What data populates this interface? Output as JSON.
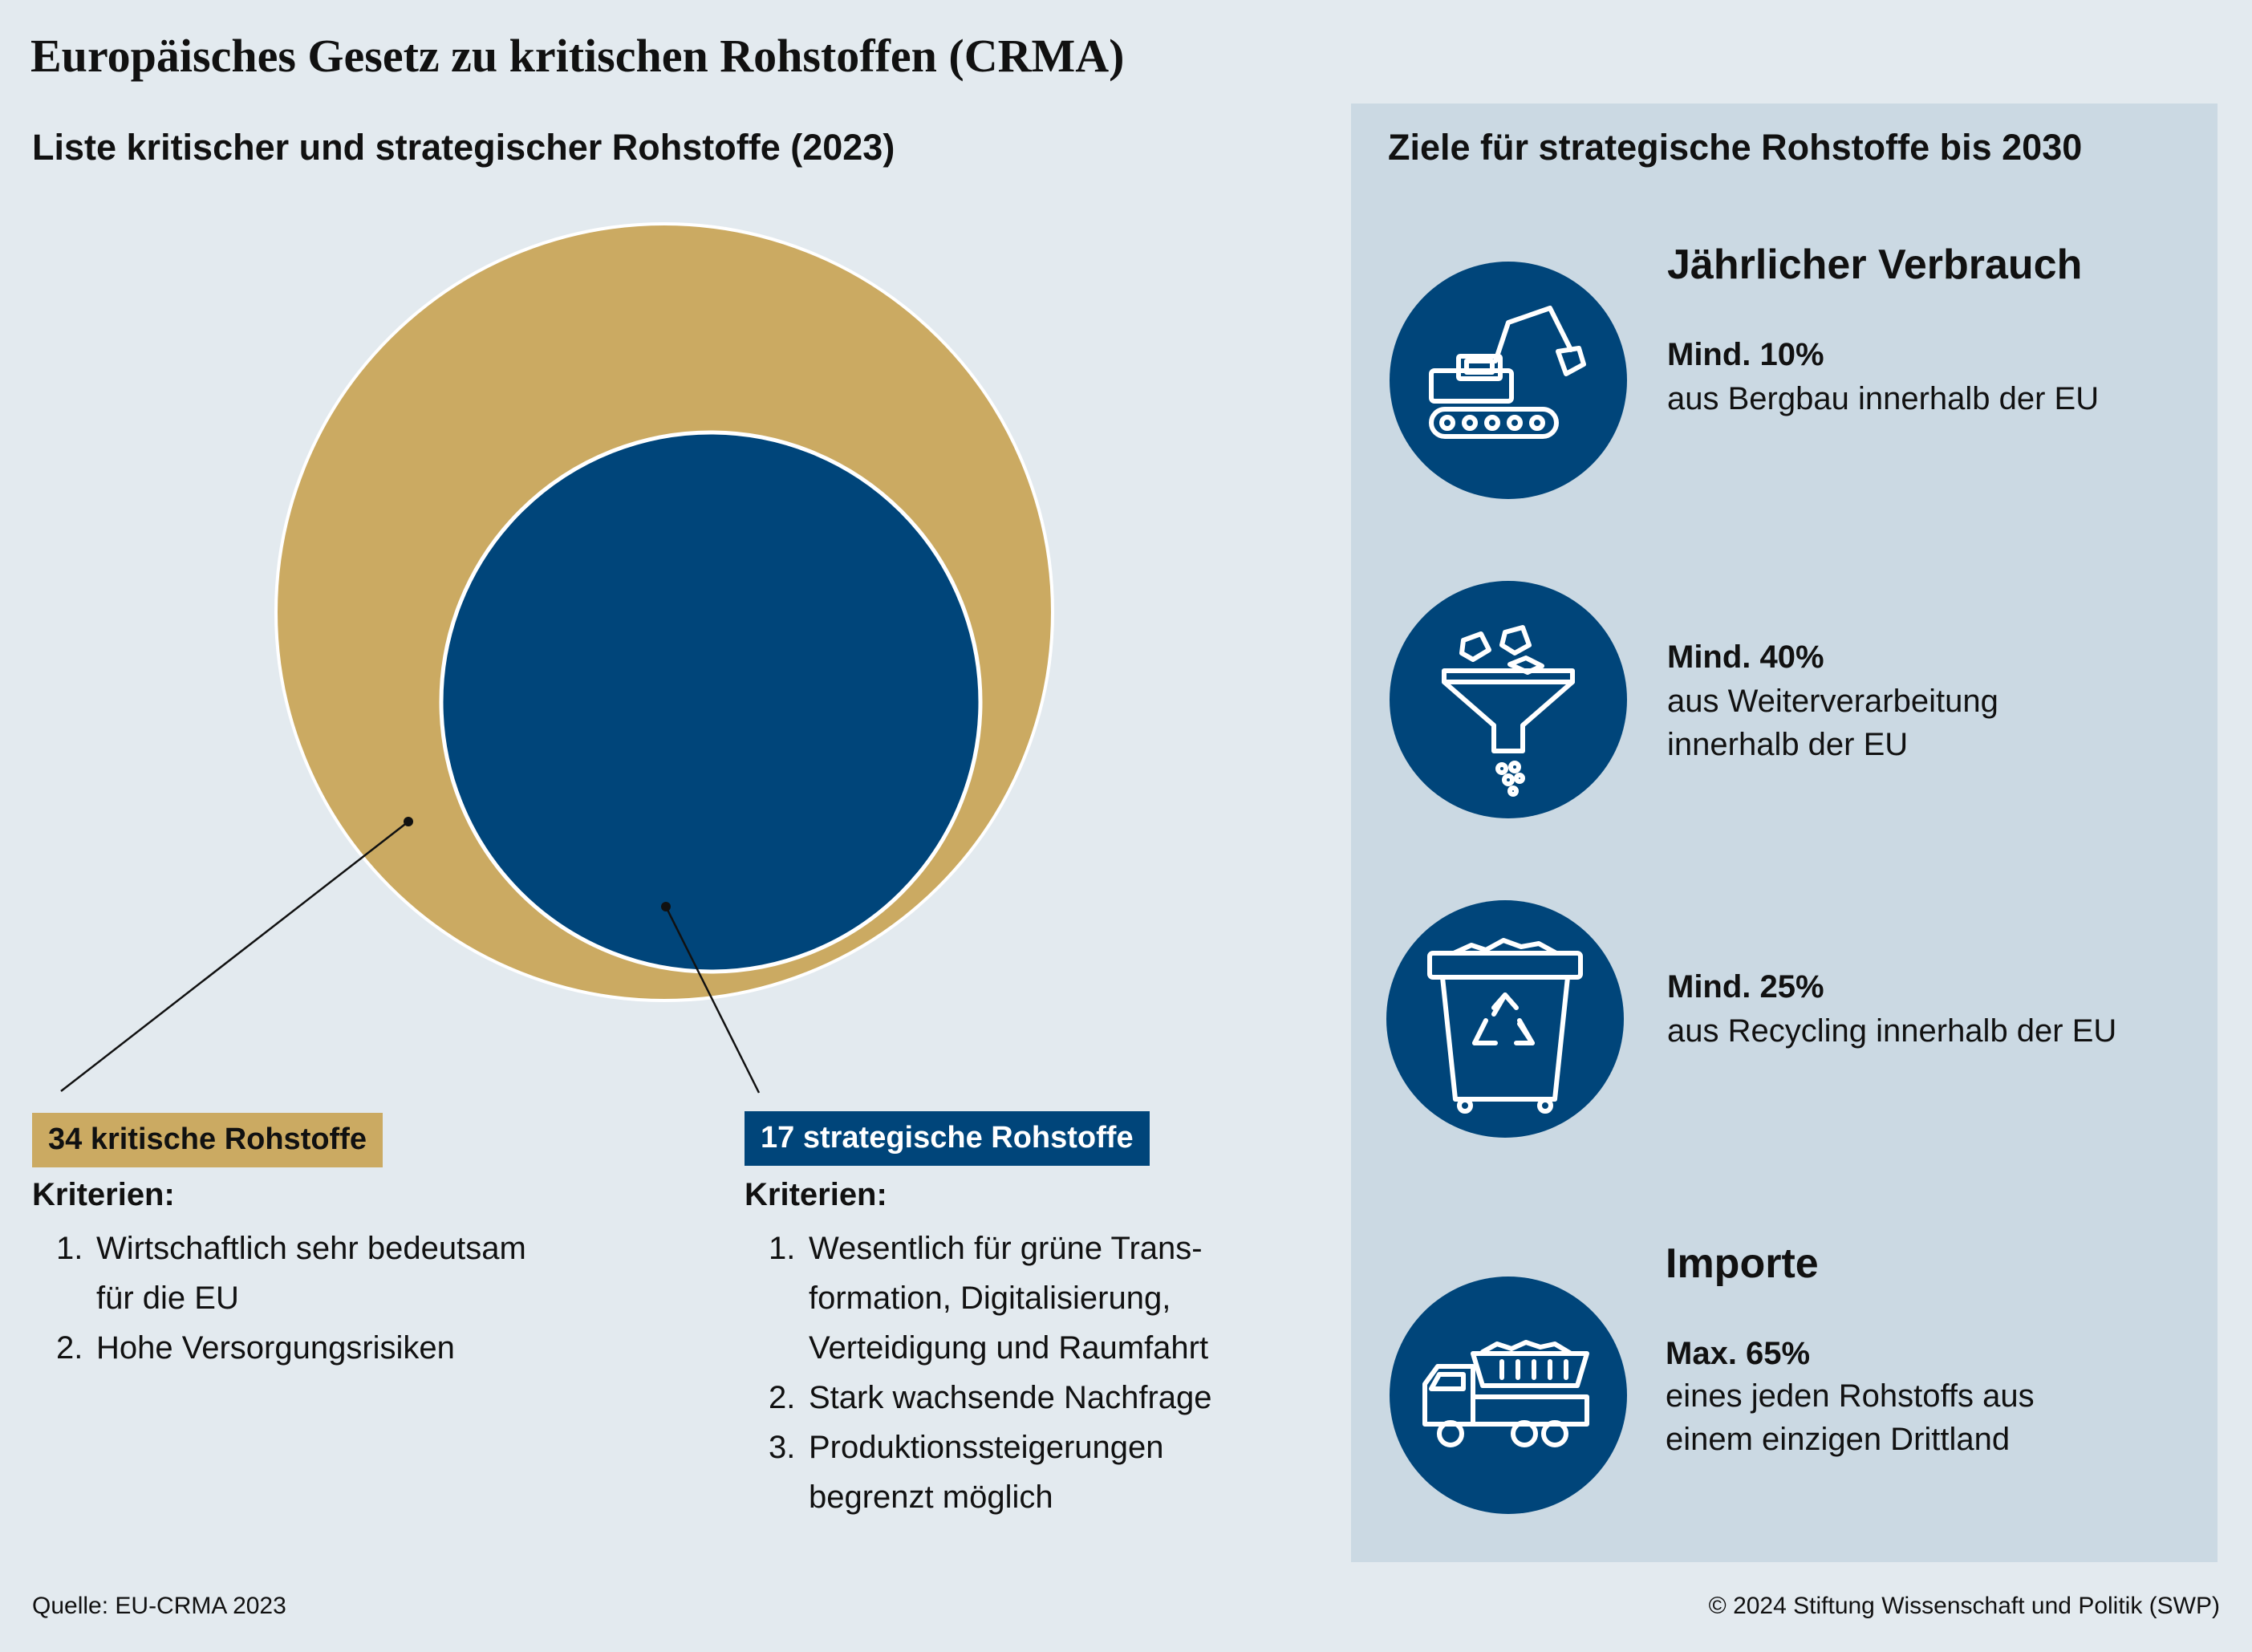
{
  "title": "Europäisches Gesetz zu kritischen Rohstoffen (CRMA)",
  "left": {
    "heading": "Liste kritischer und strategischer Rohstoffe (2023)",
    "critical": {
      "label": "34 kritische Rohstoffe",
      "criteria_heading": "Kriterien:",
      "criteria": [
        {
          "num": "1.",
          "text": "Wirtschaftlich sehr bedeutsam für die EU"
        },
        {
          "num": "2.",
          "text": "Hohe Versorgungsrisiken"
        }
      ]
    },
    "strategic": {
      "label": "17 strategische Rohstoffe",
      "criteria_heading": "Kriterien:",
      "criteria": [
        {
          "num": "1.",
          "text": "Wesentlich für grüne Trans-formation, Digitalisierung, Verteidigung und Raumfahrt"
        },
        {
          "num": "2.",
          "text": "Stark wachsende Nachfrage"
        },
        {
          "num": "3.",
          "text": "Produktionssteigerungen begrenzt möglich"
        }
      ]
    }
  },
  "right": {
    "heading": "Ziele für strategische Rohstoffe bis 2030",
    "consumption_heading": "Jährlicher Verbrauch",
    "goals": [
      {
        "icon": "excavator-icon",
        "value": "Mind. 10%",
        "text": "aus Bergbau innerhalb der EU"
      },
      {
        "icon": "funnel-icon",
        "value": "Mind. 40%",
        "text": "aus Weiterverarbeitung innerhalb der EU"
      },
      {
        "icon": "recycling-bin-icon",
        "value": "Mind. 25%",
        "text": "aus Recycling innerhalb der EU"
      }
    ],
    "imports_heading": "Importe",
    "import_goal": {
      "icon": "dump-truck-icon",
      "value": "Max. 65%",
      "text": "eines jeden Rohstoffs aus einem einzigen Drittland"
    }
  },
  "footer": {
    "source": "Quelle: EU-CRMA 2023",
    "copyright": "© 2024 Stiftung Wissenschaft und Politik (SWP)"
  },
  "colors": {
    "background": "#e3eaef",
    "panel": "#cbd9e3",
    "gold": "#cbaa62",
    "blue": "#00457a"
  }
}
